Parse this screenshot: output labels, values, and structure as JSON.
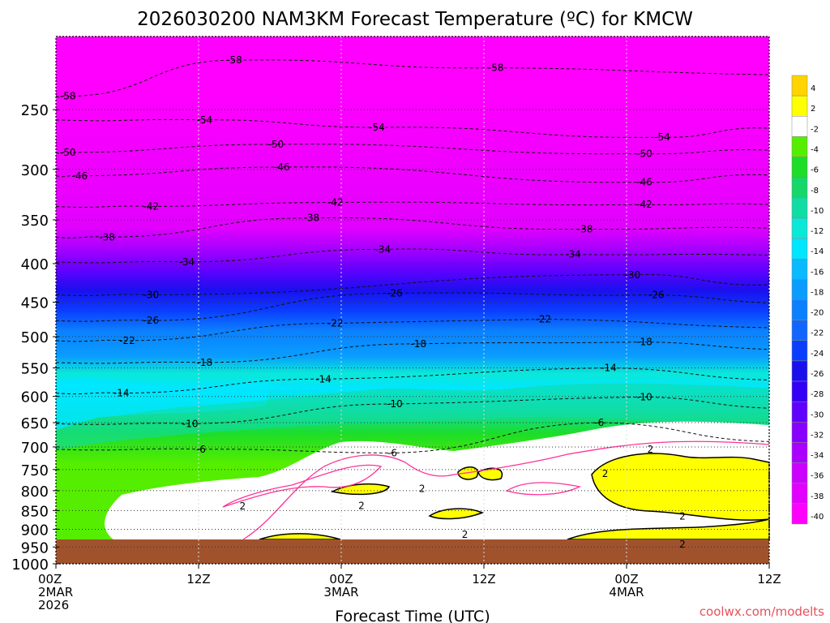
{
  "chart_data": {
    "type": "heatmap",
    "title": "2026030200 NAM3KM Forecast Temperature (ºC) for KMCW",
    "xlabel": "Forecast Time (UTC)",
    "ylabel": "",
    "watermark": "coolwx.com/modelts",
    "y_axis": {
      "scale": "log-pressure",
      "ylim": [
        1000,
        200
      ],
      "ticks": [
        250,
        300,
        350,
        400,
        450,
        500,
        550,
        600,
        650,
        700,
        750,
        800,
        850,
        900,
        950,
        1000
      ]
    },
    "x_axis": {
      "xlim_hours": [
        0,
        60
      ],
      "ticks": [
        {
          "hour": 0,
          "lines": [
            "00Z",
            "2MAR",
            "2026"
          ]
        },
        {
          "hour": 12,
          "lines": [
            "12Z"
          ]
        },
        {
          "hour": 24,
          "lines": [
            "00Z",
            "3MAR"
          ]
        },
        {
          "hour": 36,
          "lines": [
            "12Z"
          ]
        },
        {
          "hour": 48,
          "lines": [
            "00Z",
            "4MAR"
          ]
        },
        {
          "hour": 60,
          "lines": [
            "12Z"
          ]
        }
      ]
    },
    "colorbar": {
      "labels": [
        "4",
        "2",
        "-2",
        "-4",
        "-6",
        "-8",
        "-10",
        "-12",
        "-14",
        "-16",
        "-18",
        "-20",
        "-22",
        "-24",
        "-26",
        "-28",
        "-30",
        "-32",
        "-34",
        "-36",
        "-38",
        "-40"
      ],
      "colors": [
        "#ffd400",
        "#ffff00",
        "#ffffff",
        "#55ee00",
        "#1ddd28",
        "#16d86a",
        "#10dca4",
        "#0ae8d8",
        "#00e6ff",
        "#0abaff",
        "#0a9cff",
        "#0b80ff",
        "#1166ff",
        "#0b3dff",
        "#1a10ee",
        "#3400f5",
        "#6000ff",
        "#8800ff",
        "#aa00ff",
        "#cc00ff",
        "#e200ff",
        "#ff00ff"
      ]
    },
    "contour_labels": [
      {
        "hour": 1,
        "hPa": 240,
        "value": "-58"
      },
      {
        "hour": 15,
        "hPa": 215,
        "value": "-58"
      },
      {
        "hour": 37,
        "hPa": 220,
        "value": "-58"
      },
      {
        "hour": 12.5,
        "hPa": 258,
        "value": "-54"
      },
      {
        "hour": 27,
        "hPa": 264,
        "value": "-54"
      },
      {
        "hour": 51,
        "hPa": 272,
        "value": "-54"
      },
      {
        "hour": 1,
        "hPa": 285,
        "value": "-50"
      },
      {
        "hour": 18.5,
        "hPa": 278,
        "value": "-50"
      },
      {
        "hour": 49.5,
        "hPa": 286,
        "value": "-50"
      },
      {
        "hour": 2,
        "hPa": 306,
        "value": "-46"
      },
      {
        "hour": 19,
        "hPa": 298,
        "value": "-46"
      },
      {
        "hour": 49.5,
        "hPa": 312,
        "value": "-46"
      },
      {
        "hour": 8,
        "hPa": 336,
        "value": "-42"
      },
      {
        "hour": 23.5,
        "hPa": 332,
        "value": "-42"
      },
      {
        "hour": 49.5,
        "hPa": 334,
        "value": "-42"
      },
      {
        "hour": 4.3,
        "hPa": 369,
        "value": "-38"
      },
      {
        "hour": 21.5,
        "hPa": 348,
        "value": "-38"
      },
      {
        "hour": 44.5,
        "hPa": 360,
        "value": "-38"
      },
      {
        "hour": 11,
        "hPa": 398,
        "value": "-34"
      },
      {
        "hour": 27.5,
        "hPa": 383,
        "value": "-34"
      },
      {
        "hour": 43.5,
        "hPa": 389,
        "value": "-34"
      },
      {
        "hour": 8,
        "hPa": 440,
        "value": "-30"
      },
      {
        "hour": 48.5,
        "hPa": 414,
        "value": "-30"
      },
      {
        "hour": 8,
        "hPa": 476,
        "value": "-26"
      },
      {
        "hour": 28.5,
        "hPa": 438,
        "value": "-26"
      },
      {
        "hour": 50.5,
        "hPa": 440,
        "value": "-26"
      },
      {
        "hour": 6,
        "hPa": 506,
        "value": "-22"
      },
      {
        "hour": 23.5,
        "hPa": 480,
        "value": "-22"
      },
      {
        "hour": 41,
        "hPa": 474,
        "value": "-22"
      },
      {
        "hour": 12.5,
        "hPa": 541,
        "value": "-18"
      },
      {
        "hour": 30.5,
        "hPa": 511,
        "value": "-18"
      },
      {
        "hour": 49.5,
        "hPa": 508,
        "value": "-18"
      },
      {
        "hour": 5.5,
        "hPa": 594,
        "value": "-14"
      },
      {
        "hour": 22.5,
        "hPa": 569,
        "value": "-14"
      },
      {
        "hour": 46.5,
        "hPa": 550,
        "value": "-14"
      },
      {
        "hour": 11.3,
        "hPa": 652,
        "value": "-10"
      },
      {
        "hour": 28.5,
        "hPa": 614,
        "value": "-10"
      },
      {
        "hour": 49.5,
        "hPa": 601,
        "value": "-10"
      },
      {
        "hour": 12.2,
        "hPa": 705,
        "value": "-6"
      },
      {
        "hour": 28.3,
        "hPa": 713,
        "value": "-6"
      },
      {
        "hour": 45.7,
        "hPa": 650,
        "value": "-6"
      },
      {
        "hour": 15.7,
        "hPa": 839,
        "value": "2"
      },
      {
        "hour": 25.7,
        "hPa": 838,
        "value": "2"
      },
      {
        "hour": 30.8,
        "hPa": 795,
        "value": "2"
      },
      {
        "hour": 34.4,
        "hPa": 915,
        "value": "2"
      },
      {
        "hour": 50,
        "hPa": 705,
        "value": "2"
      },
      {
        "hour": 46.2,
        "hPa": 760,
        "value": "2"
      },
      {
        "hour": 52.7,
        "hPa": 865,
        "value": "2"
      },
      {
        "hour": 52.7,
        "hPa": 942,
        "value": "2"
      }
    ]
  }
}
